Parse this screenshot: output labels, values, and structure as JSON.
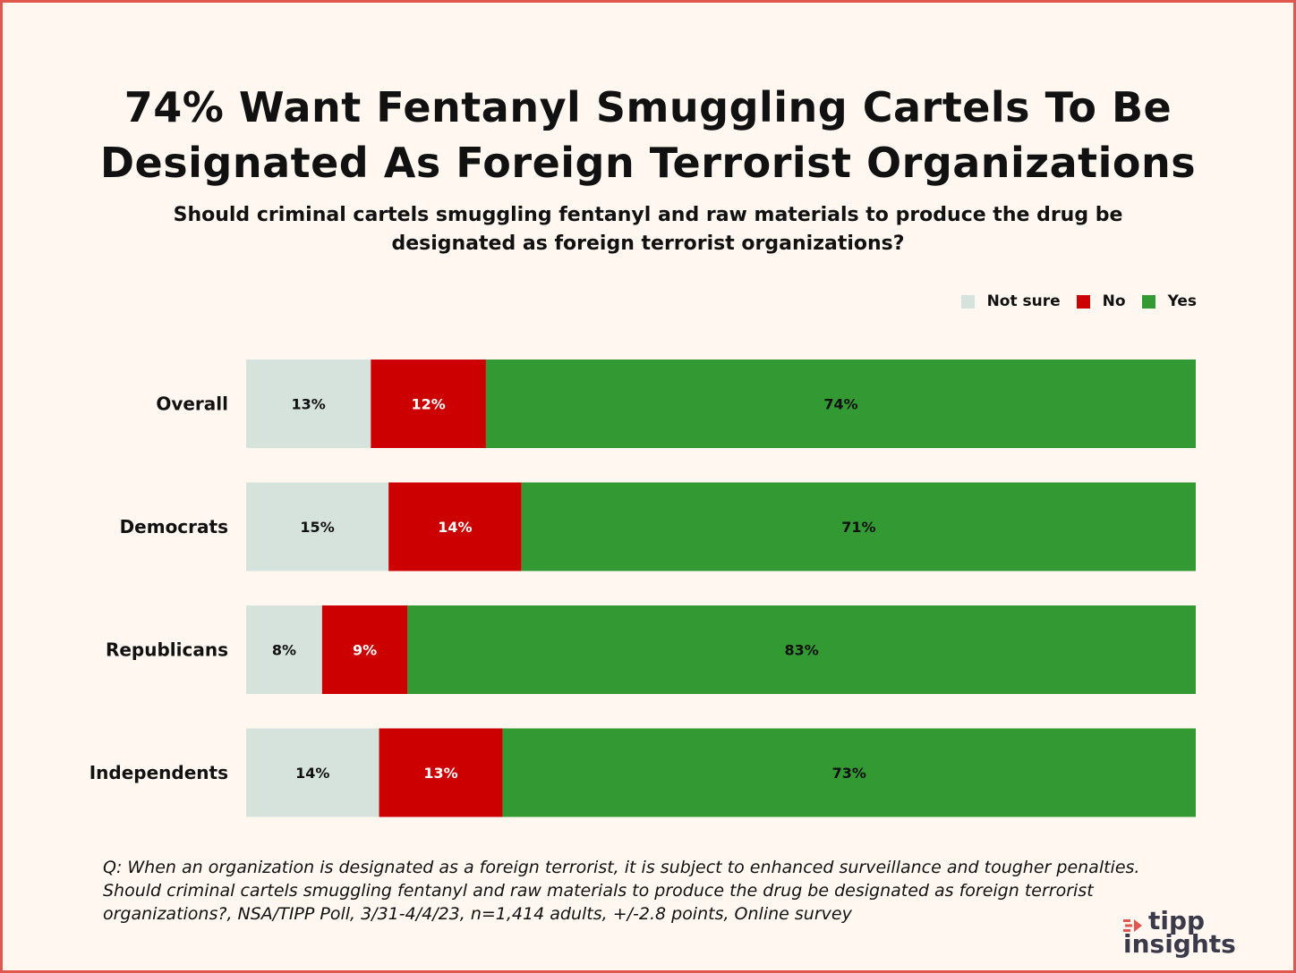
{
  "title_line1": "74% Want Fentanyl Smuggling Cartels To Be",
  "title_line2": "Designated As Foreign Terrorist Organizations",
  "subtitle": "Should criminal cartels smuggling fentanyl and raw materials to produce the drug be designated as foreign terrorist organizations?",
  "legend": [
    {
      "label": "Not sure",
      "color": "#d6e2dc"
    },
    {
      "label": "No",
      "color": "#cc0000"
    },
    {
      "label": "Yes",
      "color": "#339933"
    }
  ],
  "footnote_line1": "Q: When an organization is designated as a foreign terrorist, it is subject to enhanced surveillance and tougher penalties.",
  "footnote_line2": "Should criminal cartels smuggling fentanyl and raw materials to produce the drug be designated as foreign terrorist",
  "footnote_line3": "organizations?, NSA/TIPP Poll, 3/31-4/4/23, n=1,414 adults, +/-2.8 points, Online survey",
  "logo": {
    "line1": "tipp",
    "line2": "insights",
    "mark_color": "#e0574f"
  },
  "chart_data": {
    "type": "bar",
    "orientation": "horizontal",
    "stacked": true,
    "categories": [
      "Overall",
      "Democrats",
      "Republicans",
      "Independents"
    ],
    "series": [
      {
        "name": "Not sure",
        "color": "#d6e2dc",
        "label_color": "#111111",
        "values": [
          13,
          15,
          8,
          14
        ],
        "labels": [
          "13%",
          "15%",
          "8%",
          "14%"
        ]
      },
      {
        "name": "No",
        "color": "#cc0000",
        "label_color": "#ffffff",
        "values": [
          12,
          14,
          9,
          13
        ],
        "labels": [
          "12%",
          "14%",
          "9%",
          "13%"
        ]
      },
      {
        "name": "Yes",
        "color": "#339933",
        "label_color": "#111111",
        "values": [
          74,
          71,
          83,
          73
        ],
        "labels": [
          "74%",
          "71%",
          "83%",
          "73%"
        ]
      }
    ],
    "legend_position": "top-right",
    "grid": false
  }
}
